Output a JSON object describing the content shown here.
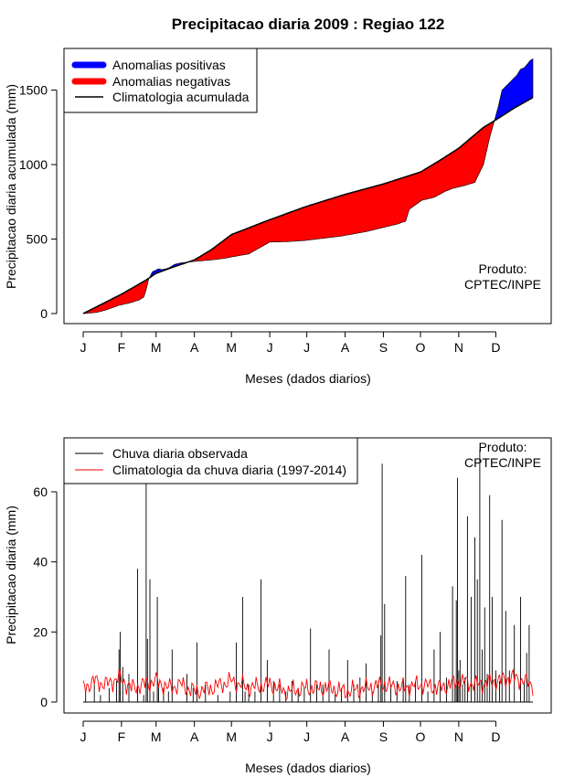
{
  "figure": {
    "title": "Precipitacao diaria 2009 : Regiao 122",
    "note_line1": "Produto:",
    "note_line2": "CPTEC/INPE"
  },
  "chart_data": [
    {
      "type": "area",
      "ylabel": "Precipitacao diaria acumulada (mm)",
      "xlabel": "Meses (dados diarios)",
      "xlim": [
        1,
        365
      ],
      "ylim": [
        0,
        1700
      ],
      "yticks": [
        0,
        500,
        1000,
        1500
      ],
      "month_ticks": [
        "J",
        "F",
        "M",
        "A",
        "M",
        "J",
        "J",
        "A",
        "S",
        "O",
        "N",
        "D"
      ],
      "month_days": [
        1,
        32,
        60,
        91,
        121,
        152,
        182,
        213,
        244,
        274,
        305,
        335
      ],
      "legend": {
        "position": "top-left",
        "items": [
          {
            "label": "Anomalias positivas",
            "color": "#0000ff"
          },
          {
            "label": "Anomalias negativas",
            "color": "#ff0000"
          },
          {
            "label": "Climatologia acumulada",
            "color": "#000000"
          }
        ]
      },
      "colors": {
        "positive": "#0000ff",
        "negative": "#ff0000",
        "climatology": "#000000"
      },
      "climatology": {
        "day": [
          1,
          32,
          52,
          60,
          75,
          91,
          105,
          121,
          152,
          182,
          213,
          244,
          274,
          290,
          305,
          325,
          335,
          350,
          365
        ],
        "value": [
          0,
          130,
          225,
          270,
          315,
          360,
          430,
          530,
          630,
          720,
          800,
          870,
          950,
          1030,
          1110,
          1250,
          1300,
          1380,
          1450
        ]
      },
      "observed": {
        "day": [
          1,
          5,
          12,
          20,
          30,
          38,
          46,
          50,
          52,
          54,
          57,
          62,
          65,
          70,
          75,
          80,
          91,
          105,
          115,
          121,
          135,
          150,
          152,
          165,
          180,
          190,
          210,
          230,
          245,
          255,
          262,
          265,
          275,
          285,
          294,
          300,
          310,
          318,
          322,
          325,
          330,
          334,
          337,
          340,
          346,
          352,
          355,
          358,
          363,
          365
        ],
        "value": [
          0,
          2,
          8,
          25,
          55,
          70,
          90,
          110,
          160,
          230,
          280,
          300,
          295,
          305,
          330,
          340,
          350,
          360,
          370,
          380,
          400,
          470,
          480,
          482,
          490,
          500,
          520,
          550,
          580,
          600,
          620,
          700,
          760,
          780,
          820,
          840,
          860,
          880,
          950,
          1000,
          1180,
          1300,
          1390,
          1500,
          1550,
          1600,
          1640,
          1650,
          1700,
          1710
        ]
      }
    },
    {
      "type": "bar",
      "ylabel": "Precipitacao diaria (mm)",
      "xlabel": "Meses (dados diarios)",
      "xlim": [
        1,
        365
      ],
      "ylim": [
        0,
        72
      ],
      "yticks": [
        0,
        20,
        40,
        60
      ],
      "month_ticks": [
        "J",
        "F",
        "M",
        "A",
        "M",
        "J",
        "J",
        "A",
        "S",
        "O",
        "N",
        "D"
      ],
      "month_days": [
        1,
        32,
        60,
        91,
        121,
        152,
        182,
        213,
        244,
        274,
        305,
        335
      ],
      "legend": {
        "position": "top-left",
        "items": [
          {
            "label": "Chuva diaria observada",
            "color": "#000000"
          },
          {
            "label": "Climatologia da chuva diaria (1997-2014)",
            "color": "#ff0000"
          }
        ]
      },
      "colors": {
        "observed": "#000000",
        "climatology": "#ff0000"
      },
      "daily_observed": {
        "day": [
          3,
          10,
          15,
          22,
          28,
          30,
          31,
          33,
          38,
          45,
          50,
          52,
          53,
          55,
          58,
          61,
          62,
          66,
          70,
          73,
          85,
          90,
          93,
          100,
          110,
          120,
          125,
          130,
          132,
          135,
          140,
          145,
          150,
          155,
          160,
          165,
          170,
          175,
          180,
          185,
          190,
          195,
          200,
          205,
          210,
          215,
          220,
          225,
          230,
          235,
          240,
          242,
          243,
          245,
          250,
          255,
          260,
          262,
          265,
          270,
          275,
          280,
          285,
          290,
          295,
          300,
          302,
          303,
          304,
          305,
          306,
          308,
          310,
          312,
          315,
          318,
          320,
          322,
          324,
          326,
          328,
          330,
          332,
          335,
          338,
          340,
          343,
          346,
          350,
          355,
          358,
          360,
          362
        ],
        "value": [
          3,
          5,
          2,
          4,
          6,
          15,
          20,
          10,
          8,
          38,
          2,
          65,
          18,
          35,
          3,
          30,
          5,
          4,
          3,
          15,
          8,
          4,
          17,
          5,
          2,
          3,
          17,
          30,
          3,
          5,
          3,
          35,
          12,
          6,
          5,
          3,
          6,
          4,
          4,
          21,
          5,
          5,
          15,
          3,
          4,
          12,
          5,
          7,
          11,
          3,
          6,
          19,
          68,
          28,
          5,
          6,
          7,
          36,
          5,
          6,
          42,
          3,
          15,
          20,
          7,
          33,
          5,
          29,
          64,
          9,
          12,
          5,
          7,
          53,
          30,
          47,
          35,
          72,
          15,
          27,
          8,
          59,
          30,
          9,
          6,
          52,
          26,
          9,
          22,
          30,
          6,
          14,
          22
        ]
      },
      "daily_climatology": {
        "day": [
          1,
          10,
          20,
          30,
          40,
          50,
          60,
          70,
          80,
          91,
          105,
          121,
          135,
          152,
          165,
          182,
          200,
          213,
          230,
          244,
          260,
          274,
          290,
          305,
          320,
          335,
          350,
          365
        ],
        "value": [
          4,
          6,
          5,
          7,
          4,
          5,
          6,
          4,
          5,
          3,
          4,
          6,
          4,
          5,
          3,
          4,
          4,
          3,
          4,
          5,
          4,
          5,
          4,
          6,
          5,
          6,
          7,
          5
        ]
      }
    }
  ]
}
